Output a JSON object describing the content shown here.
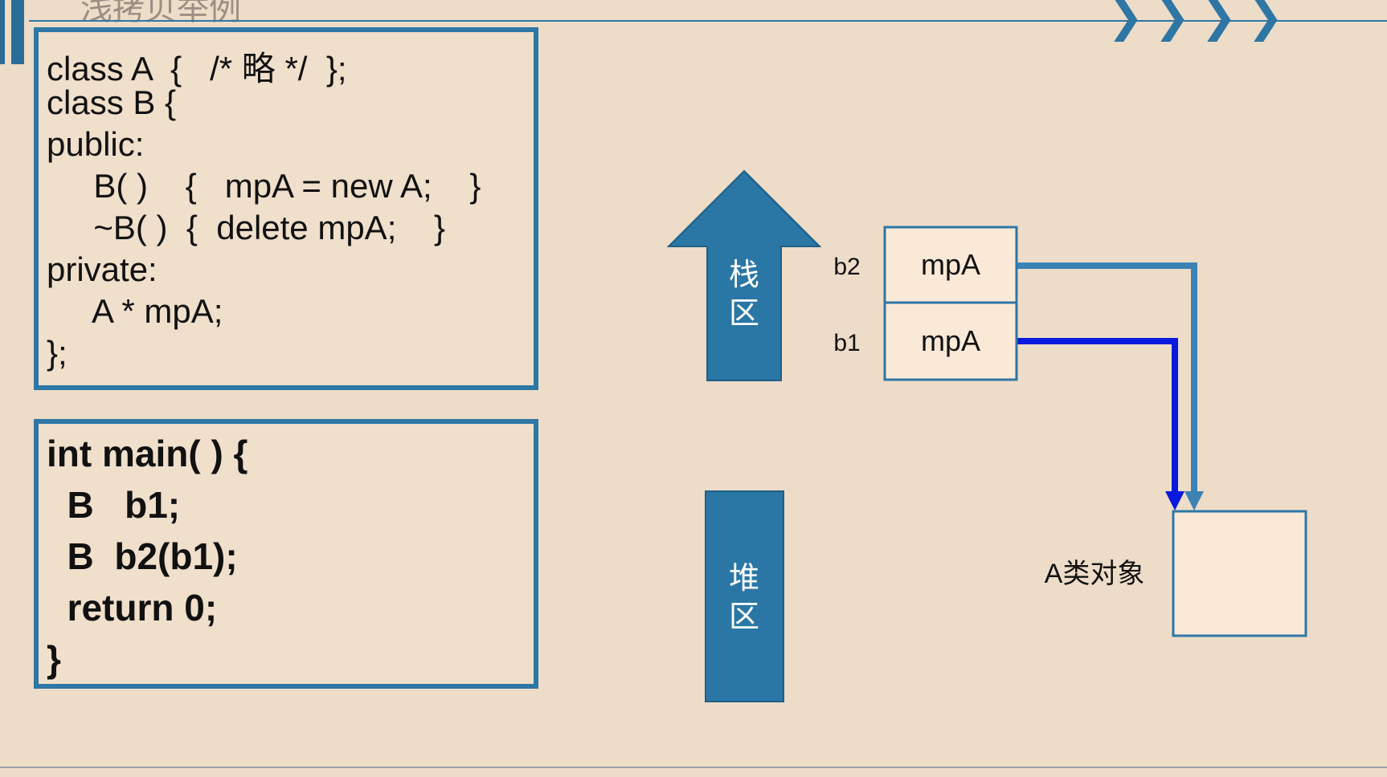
{
  "header": {
    "title": "浅拷贝举例"
  },
  "class_code": [
    "class A  {   /* 略 */  };",
    "class B {",
    "public:",
    "     B( )    {   mpA = new A;    }",
    "     ~B( )  {  delete mpA;    }",
    "private:",
    "     A * mpA;",
    "};"
  ],
  "main_code": [
    "int main( ) {",
    "  B   b1;",
    "  B  b2(b1);",
    "  return 0;",
    "}"
  ],
  "diagram": {
    "stack_label": [
      "栈",
      "区"
    ],
    "heap_label": [
      "堆",
      "区"
    ],
    "cells": [
      {
        "var": "b2",
        "field": "mpA"
      },
      {
        "var": "b1",
        "field": "mpA"
      }
    ],
    "object_label": "A类对象"
  },
  "colors": {
    "accent": "#2d77a6",
    "region": "#2a77a6",
    "pointer_b2": "#3b82b5",
    "pointer_b1": "#0a1adc",
    "cell_fill": "#fbe9d8",
    "background": "#eddcc8"
  }
}
